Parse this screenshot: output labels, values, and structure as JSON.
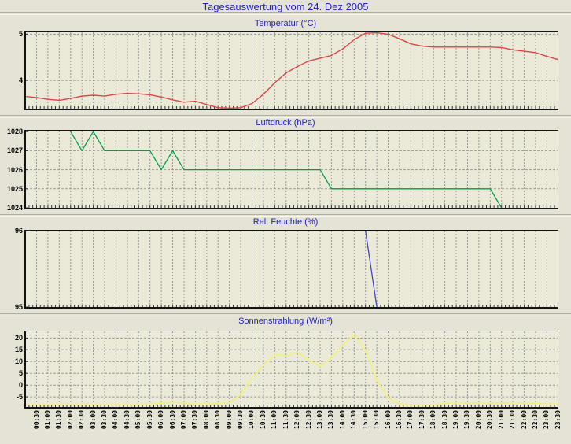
{
  "page_title": "Tagesauswertung vom 24. Dez 2005",
  "colors": {
    "title_blue": "#2222c4",
    "page_background": "#e4e3d5",
    "plot_background": "#ebead9",
    "grid": "#999999",
    "frame": "#141414",
    "temperature_line": "#dd4444",
    "pressure_line": "#00a040",
    "humidity_line": "#4444cc",
    "solar_line": "#efef8a"
  },
  "x_axis": {
    "step_minutes": 30,
    "labels": [
      "00:30",
      "01:00",
      "01:30",
      "02:00",
      "02:30",
      "03:00",
      "03:30",
      "04:00",
      "04:30",
      "05:00",
      "05:30",
      "06:00",
      "06:30",
      "07:00",
      "07:30",
      "08:00",
      "08:30",
      "09:00",
      "09:30",
      "10:00",
      "10:30",
      "11:00",
      "11:30",
      "12:00",
      "12:30",
      "13:00",
      "13:30",
      "14:00",
      "14:30",
      "15:00",
      "15:30",
      "16:00",
      "16:30",
      "17:00",
      "17:30",
      "18:00",
      "18:30",
      "19:00",
      "19:30",
      "20:00",
      "20:30",
      "21:00",
      "21:30",
      "22:00",
      "22:30",
      "23:00",
      "23:30"
    ]
  },
  "chart_data": [
    {
      "key": "temperature",
      "type": "line",
      "title": "Temperatur (°C)",
      "ylabel": "°C",
      "color": "#dd4444",
      "stroke_width": 1.4,
      "grid": "dashed",
      "legend": "none",
      "ylim": [
        3.39,
        5.04
      ],
      "yticks": [
        5,
        4
      ],
      "points": [
        [
          "00:00",
          3.65
        ],
        [
          "00:30",
          3.63
        ],
        [
          "01:00",
          3.59
        ],
        [
          "01:30",
          3.57
        ],
        [
          "02:00",
          3.61
        ],
        [
          "02:30",
          3.66
        ],
        [
          "03:00",
          3.68
        ],
        [
          "03:30",
          3.66
        ],
        [
          "04:00",
          3.7
        ],
        [
          "04:30",
          3.72
        ],
        [
          "05:00",
          3.71
        ],
        [
          "05:30",
          3.69
        ],
        [
          "06:00",
          3.64
        ],
        [
          "06:30",
          3.58
        ],
        [
          "07:00",
          3.53
        ],
        [
          "07:30",
          3.55
        ],
        [
          "08:00",
          3.48
        ],
        [
          "08:30",
          3.41
        ],
        [
          "09:00",
          3.4
        ],
        [
          "09:30",
          3.41
        ],
        [
          "10:00",
          3.5
        ],
        [
          "10:30",
          3.7
        ],
        [
          "11:00",
          3.95
        ],
        [
          "11:30",
          4.16
        ],
        [
          "12:00",
          4.3
        ],
        [
          "12:30",
          4.42
        ],
        [
          "13:00",
          4.48
        ],
        [
          "13:30",
          4.54
        ],
        [
          "14:00",
          4.68
        ],
        [
          "14:30",
          4.88
        ],
        [
          "15:00",
          5.02
        ],
        [
          "15:30",
          5.03
        ],
        [
          "16:00",
          5.0
        ],
        [
          "16:30",
          4.9
        ],
        [
          "17:00",
          4.79
        ],
        [
          "17:30",
          4.74
        ],
        [
          "18:00",
          4.72
        ],
        [
          "18:30",
          4.72
        ],
        [
          "19:00",
          4.72
        ],
        [
          "19:30",
          4.72
        ],
        [
          "20:00",
          4.72
        ],
        [
          "20:30",
          4.72
        ],
        [
          "21:00",
          4.71
        ],
        [
          "21:30",
          4.66
        ],
        [
          "22:00",
          4.63
        ],
        [
          "22:30",
          4.6
        ],
        [
          "23:00",
          4.52
        ],
        [
          "23:30",
          4.45
        ]
      ]
    },
    {
      "key": "pressure",
      "type": "line",
      "title": "Luftdruck (hPa)",
      "ylabel": "hPa",
      "color": "#00a040",
      "stroke_width": 1.3,
      "grid": "dashed",
      "legend": "none",
      "ylim": [
        1024,
        1028.05
      ],
      "yticks": [
        1028,
        1027,
        1026,
        1025,
        1024
      ],
      "points": [
        [
          "02:00",
          1028
        ],
        [
          "02:30",
          1027
        ],
        [
          "03:00",
          1028
        ],
        [
          "03:30",
          1027
        ],
        [
          "04:00",
          1027
        ],
        [
          "04:30",
          1027
        ],
        [
          "05:00",
          1027
        ],
        [
          "05:30",
          1027
        ],
        [
          "06:00",
          1026
        ],
        [
          "06:30",
          1027
        ],
        [
          "07:00",
          1026
        ],
        [
          "07:30",
          1026
        ],
        [
          "08:00",
          1026
        ],
        [
          "08:30",
          1026
        ],
        [
          "09:00",
          1026
        ],
        [
          "09:30",
          1026
        ],
        [
          "10:00",
          1026
        ],
        [
          "10:30",
          1026
        ],
        [
          "11:00",
          1026
        ],
        [
          "11:30",
          1026
        ],
        [
          "12:00",
          1026
        ],
        [
          "12:30",
          1026
        ],
        [
          "13:00",
          1026
        ],
        [
          "13:30",
          1025
        ],
        [
          "14:00",
          1025
        ],
        [
          "14:30",
          1025
        ],
        [
          "15:00",
          1025
        ],
        [
          "15:30",
          1025
        ],
        [
          "16:00",
          1025
        ],
        [
          "16:30",
          1025
        ],
        [
          "17:00",
          1025
        ],
        [
          "17:30",
          1025
        ],
        [
          "18:00",
          1025
        ],
        [
          "18:30",
          1025
        ],
        [
          "19:00",
          1025
        ],
        [
          "19:30",
          1025
        ],
        [
          "20:00",
          1025
        ],
        [
          "20:30",
          1025
        ],
        [
          "21:00",
          1024
        ]
      ]
    },
    {
      "key": "humidity",
      "type": "line",
      "title": "Rel. Feuchte (%)",
      "ylabel": "%",
      "color": "#4444cc",
      "stroke_width": 1.3,
      "grid": "dashed",
      "legend": "none",
      "ylim": [
        95,
        96
      ],
      "yticks": [
        96,
        95
      ],
      "points": [
        [
          "15:00",
          96
        ],
        [
          "15:30",
          95
        ]
      ]
    },
    {
      "key": "solar",
      "type": "line",
      "title": "Sonnenstrahlung (W/m²)",
      "ylabel": "W/m²",
      "color": "#efef8a",
      "stroke_width": 2,
      "grid": "dashed",
      "legend": "none",
      "ylim": [
        -9.3,
        22.8
      ],
      "yticks": [
        20,
        15,
        10,
        5,
        0,
        -5
      ],
      "points": [
        [
          "00:00",
          -8.2
        ],
        [
          "00:30",
          -8.2
        ],
        [
          "01:00",
          -8.2
        ],
        [
          "01:30",
          -8.2
        ],
        [
          "02:00",
          -8.2
        ],
        [
          "02:30",
          -8.2
        ],
        [
          "03:00",
          -8.2
        ],
        [
          "03:30",
          -8.2
        ],
        [
          "04:00",
          -8.2
        ],
        [
          "04:30",
          -8.2
        ],
        [
          "05:00",
          -8.2
        ],
        [
          "05:30",
          -8.2
        ],
        [
          "06:00",
          -7.6
        ],
        [
          "06:30",
          -7.4
        ],
        [
          "07:00",
          -7.6
        ],
        [
          "07:30",
          -8.1
        ],
        [
          "08:00",
          -8.1
        ],
        [
          "08:30",
          -7.9
        ],
        [
          "09:00",
          -7.5
        ],
        [
          "09:30",
          -4.0
        ],
        [
          "10:00",
          3.0
        ],
        [
          "10:30",
          8.5
        ],
        [
          "11:00",
          13.0
        ],
        [
          "11:30",
          12.3
        ],
        [
          "12:00",
          14.0
        ],
        [
          "12:30",
          10.5
        ],
        [
          "13:00",
          8.0
        ],
        [
          "13:30",
          11.5
        ],
        [
          "14:00",
          17.0
        ],
        [
          "14:30",
          21.5
        ],
        [
          "15:00",
          14.5
        ],
        [
          "15:30",
          2.0
        ],
        [
          "16:00",
          -5.5
        ],
        [
          "16:30",
          -8.0
        ],
        [
          "17:00",
          -8.4
        ],
        [
          "17:30",
          -8.4
        ],
        [
          "18:00",
          -8.4
        ],
        [
          "18:30",
          -7.8
        ],
        [
          "19:00",
          -7.6
        ],
        [
          "19:30",
          -7.6
        ],
        [
          "20:00",
          -7.6
        ],
        [
          "20:30",
          -7.6
        ],
        [
          "21:00",
          -7.6
        ],
        [
          "21:30",
          -7.6
        ],
        [
          "22:00",
          -7.6
        ],
        [
          "22:30",
          -7.8
        ],
        [
          "23:00",
          -8.1
        ],
        [
          "23:30",
          -8.1
        ]
      ]
    }
  ]
}
